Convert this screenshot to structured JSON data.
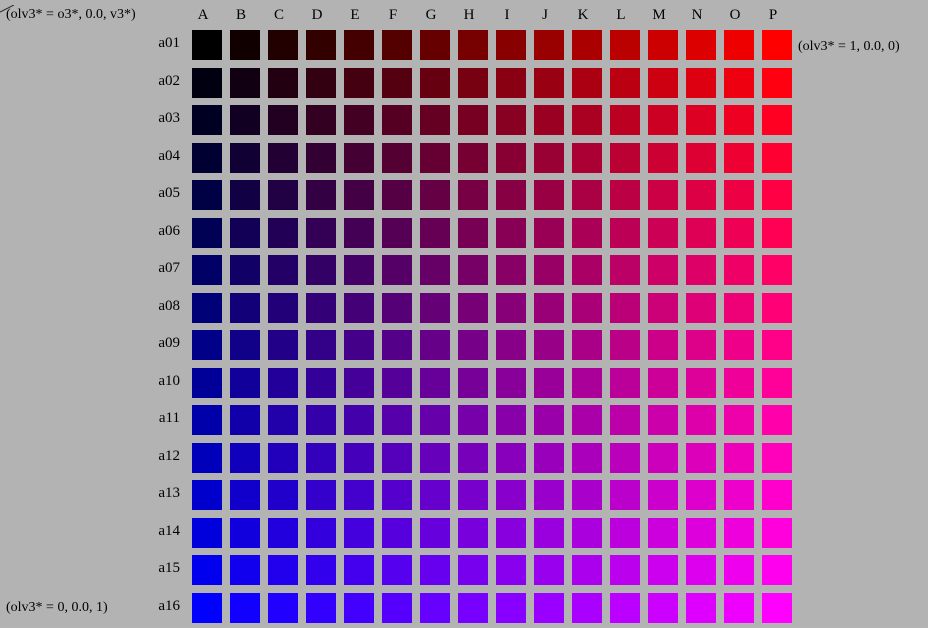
{
  "labels": {
    "top_left": "(olv3* = o3*, 0.0, v3*)",
    "top_right": "(olv3* = 1, 0.0, 0)",
    "bottom_left": "(olv3* = 0, 0.0, 1)"
  },
  "columns": [
    "A",
    "B",
    "C",
    "D",
    "E",
    "F",
    "G",
    "H",
    "I",
    "J",
    "K",
    "L",
    "M",
    "N",
    "O",
    "P"
  ],
  "rows": [
    "a01",
    "a02",
    "a03",
    "a04",
    "a05",
    "a06",
    "a07",
    "a08",
    "a09",
    "a10",
    "a11",
    "a12",
    "a13",
    "a14",
    "a15",
    "a16"
  ],
  "color_model": {
    "top_left": "#000000",
    "top_right": "#ff0000",
    "bottom_left": "#0000ff",
    "bottom_right": "#ff00ff"
  }
}
